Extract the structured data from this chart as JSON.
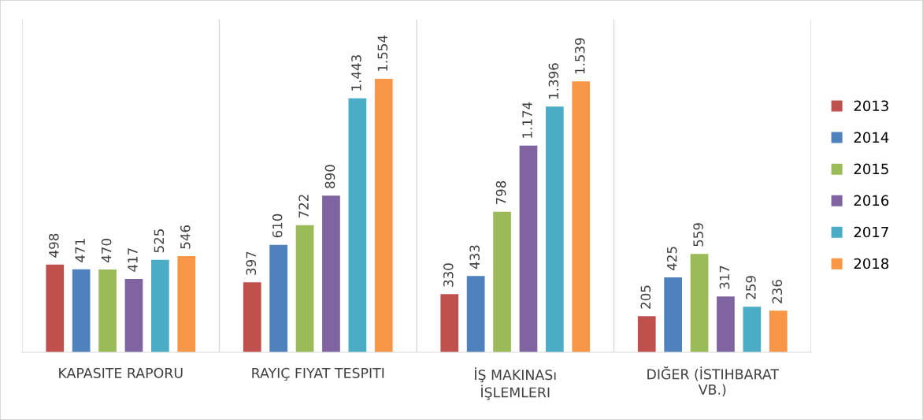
{
  "chart_data": {
    "type": "bar",
    "categories": [
      "KAPASITE RAPORU",
      "RAYIÇ FIYAT TESPITI",
      "İŞ MAKINASı\nİŞLEMLERI",
      "DIĞER (İSTIHBARAT\nVB.)"
    ],
    "series": [
      {
        "name": "2013",
        "color": "#c0504d",
        "values": [
          498,
          397,
          330,
          205
        ],
        "value_labels": [
          "498",
          "397",
          "330",
          "205"
        ]
      },
      {
        "name": "2014",
        "color": "#4f81bd",
        "values": [
          471,
          610,
          433,
          425
        ],
        "value_labels": [
          "471",
          "610",
          "433",
          "425"
        ]
      },
      {
        "name": "2015",
        "color": "#9bbb59",
        "values": [
          470,
          722,
          798,
          559
        ],
        "value_labels": [
          "470",
          "722",
          "798",
          "559"
        ]
      },
      {
        "name": "2016",
        "color": "#8064a2",
        "values": [
          417,
          890,
          1174,
          317
        ],
        "value_labels": [
          "417",
          "890",
          "1.174",
          "317"
        ]
      },
      {
        "name": "2017",
        "color": "#4bacc6",
        "values": [
          525,
          1443,
          1396,
          259
        ],
        "value_labels": [
          "525",
          "1.443",
          "1.396",
          "259"
        ]
      },
      {
        "name": "2018",
        "color": "#f79646",
        "values": [
          546,
          1554,
          1539,
          236
        ],
        "value_labels": [
          "546",
          "1.554",
          "1.539",
          "236"
        ]
      }
    ],
    "ylim": [
      0,
      1890
    ],
    "tick_labels": "x",
    "grid": "x",
    "legend": "right"
  }
}
